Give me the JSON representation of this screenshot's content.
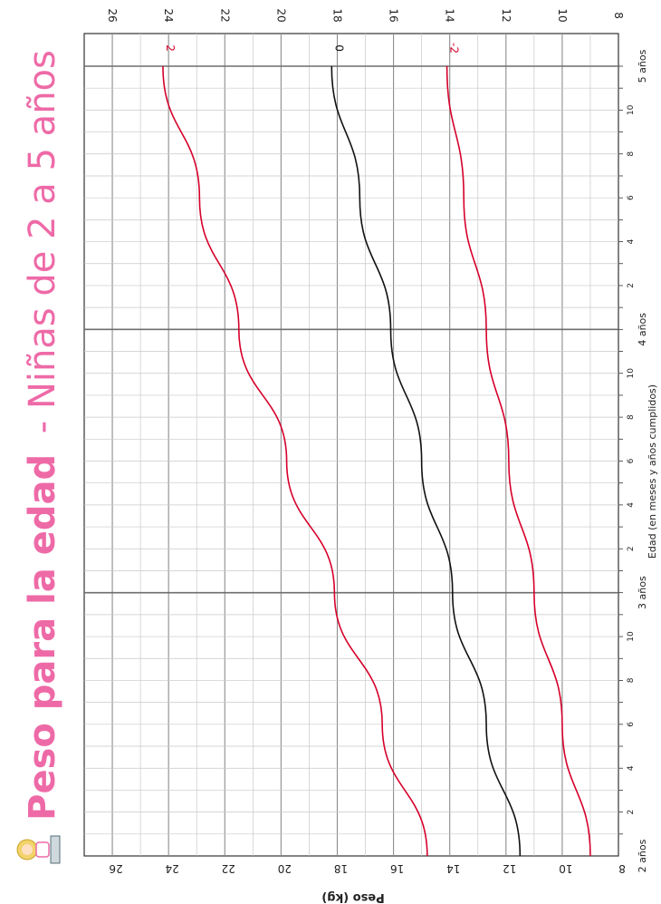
{
  "chart_data": {
    "type": "line",
    "title_bold": "Peso para la edad",
    "title_rest": "- Niñas de 2 a 5 años",
    "ylabel": "Peso (kg)",
    "xlabel": "Edad (en meses y años cumplidos)",
    "ylim": [
      8,
      27
    ],
    "yticks": [
      8,
      10,
      12,
      14,
      16,
      18,
      20,
      22,
      24,
      26
    ],
    "xlim": [
      24,
      60
    ],
    "year_labels": [
      {
        "month": 24,
        "label": "2 años"
      },
      {
        "month": 36,
        "label": "3 años"
      },
      {
        "month": 48,
        "label": "4 años"
      },
      {
        "month": 60,
        "label": "5 años"
      }
    ],
    "minor_labels": [
      "2",
      "4",
      "6",
      "8",
      "10"
    ],
    "grid": true,
    "colors": {
      "title": "#ee6aa7",
      "sd2": "#d6002a",
      "median": "#111111",
      "grid_major": "#8c8c8c",
      "grid_minor": "#c8c8c8"
    },
    "x": [
      24,
      30,
      36,
      42,
      48,
      54,
      60
    ],
    "series": [
      {
        "name": "2",
        "color": "#d6002a",
        "values": [
          14.8,
          16.4,
          18.1,
          19.8,
          21.5,
          22.9,
          24.2
        ]
      },
      {
        "name": "0",
        "color": "#111111",
        "values": [
          11.5,
          12.7,
          13.9,
          15.0,
          16.1,
          17.2,
          18.2
        ]
      },
      {
        "name": "-2",
        "color": "#d6002a",
        "values": [
          9.0,
          10.0,
          11.0,
          11.9,
          12.7,
          13.5,
          14.1
        ]
      }
    ]
  }
}
